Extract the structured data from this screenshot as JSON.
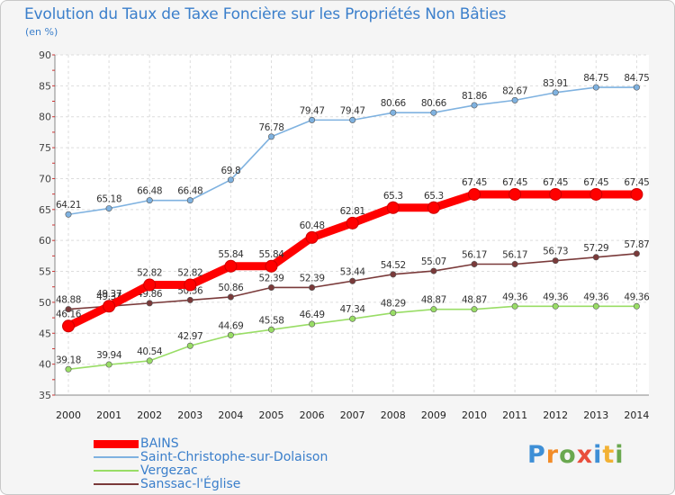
{
  "title": "Evolution du Taux de Taxe Foncière sur les Propriétés Non Bâties",
  "ylabel": "(en %)",
  "logo": {
    "text": "Proxiti",
    "letters": [
      {
        "ch": "P",
        "color": "#3e8fd6"
      },
      {
        "ch": "r",
        "color": "#f28c28"
      },
      {
        "ch": "o",
        "color": "#6aa84f"
      },
      {
        "ch": "x",
        "color": "#e94e3c"
      },
      {
        "ch": "i",
        "color": "#3e8fd6"
      },
      {
        "ch": "t",
        "color": "#f2b134"
      },
      {
        "ch": "i",
        "color": "#6aa84f"
      }
    ]
  },
  "chart_data": {
    "type": "line",
    "title": "Evolution du Taux de Taxe Foncière sur les Propriétés Non Bâties",
    "xlabel": "",
    "ylabel": "(en %)",
    "ylim": [
      35,
      90
    ],
    "yticks": [
      35,
      40,
      45,
      50,
      55,
      60,
      65,
      70,
      75,
      80,
      85,
      90
    ],
    "grid": true,
    "legend_position": "bottom-left",
    "x": [
      "2000",
      "2001",
      "2002",
      "2003",
      "2004",
      "2005",
      "2006",
      "2007",
      "2008",
      "2009",
      "2010",
      "2011",
      "2012",
      "2013",
      "2014"
    ],
    "series": [
      {
        "name": "BAINS",
        "color": "#ff0000",
        "emphasis": true,
        "values": [
          46.16,
          49.37,
          52.82,
          52.82,
          55.84,
          55.84,
          60.48,
          62.81,
          65.3,
          65.3,
          67.45,
          67.45,
          67.45,
          67.45,
          67.45
        ],
        "labels": [
          "46.16",
          "49.37",
          "52.82",
          "52.82",
          "55.84",
          "55.84",
          "60.48",
          "62.81",
          "65.3",
          "65.3",
          "67.45",
          "67.45",
          "67.45",
          "67.45",
          "67.45"
        ]
      },
      {
        "name": "Saint-Christophe-sur-Dolaison",
        "color": "#7fb2e0",
        "values": [
          64.21,
          65.18,
          66.48,
          66.48,
          69.8,
          76.78,
          79.47,
          79.47,
          80.66,
          80.66,
          81.86,
          82.67,
          83.91,
          84.75,
          84.75
        ],
        "labels": [
          "64.21",
          "65.18",
          "66.48",
          "66.48",
          "69.8",
          "76.78",
          "79.47",
          "79.47",
          "80.66",
          "80.66",
          "81.86",
          "82.67",
          "83.91",
          "84.75",
          "84.75"
        ]
      },
      {
        "name": "Vergezac",
        "color": "#99dd66",
        "values": [
          39.18,
          39.94,
          40.54,
          42.97,
          44.69,
          45.58,
          46.49,
          47.34,
          48.29,
          48.87,
          48.87,
          49.36,
          49.36,
          49.36,
          49.36
        ],
        "labels": [
          "39.18",
          "39.94",
          "40.54",
          "42.97",
          "44.69",
          "45.58",
          "46.49",
          "47.34",
          "48.29",
          "48.87",
          "48.87",
          "49.36",
          "49.36",
          "49.36",
          "49.36"
        ]
      },
      {
        "name": "Sanssac-l'Église",
        "color": "#7a3a3a",
        "values": [
          48.88,
          49.37,
          49.86,
          50.36,
          50.86,
          52.39,
          52.39,
          53.44,
          54.52,
          55.07,
          56.17,
          56.17,
          56.73,
          57.29,
          57.87
        ],
        "labels": [
          "48.88",
          "49.37",
          "49.86",
          "50.36",
          "50.86",
          "52.39",
          "52.39",
          "53.44",
          "54.52",
          "55.07",
          "56.17",
          "56.17",
          "56.73",
          "57.29",
          "57.87"
        ]
      }
    ]
  }
}
